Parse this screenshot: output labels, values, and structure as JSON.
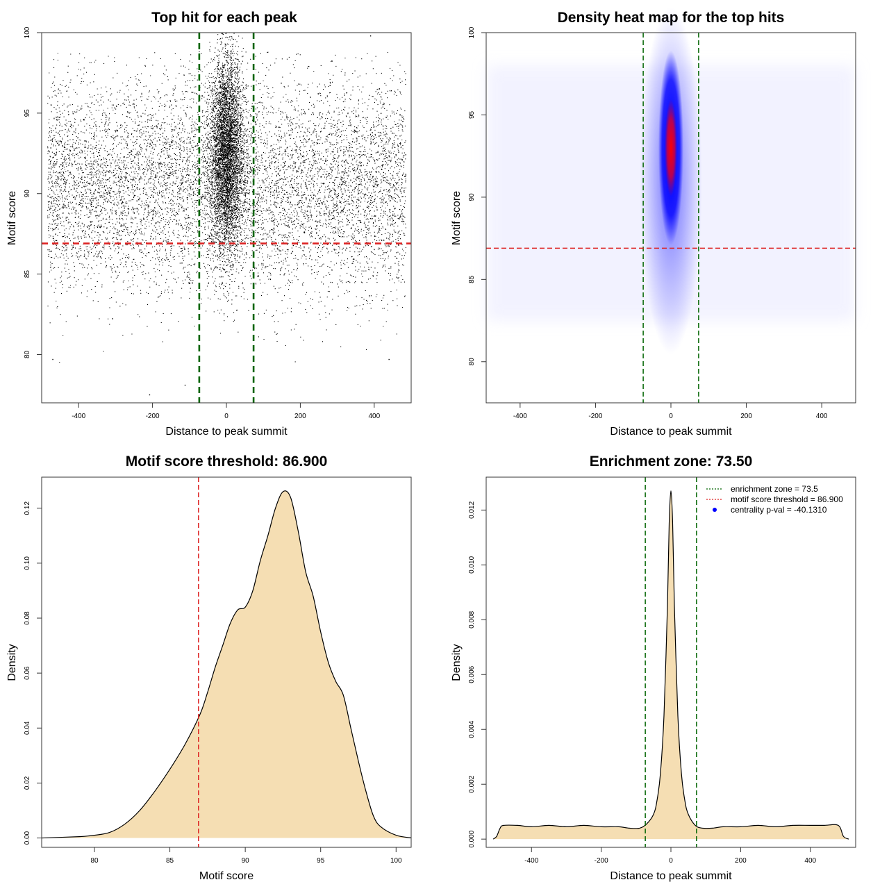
{
  "figure": {
    "panels": [
      {
        "title": "Top hit for each peak",
        "xlabel": "Distance to peak summit",
        "ylabel": "Motif score"
      },
      {
        "title": "Density heat map for the top hits",
        "xlabel": "Distance to peak summit",
        "ylabel": "Motif score"
      },
      {
        "title": "Motif score threshold: 86.900",
        "xlabel": "Motif score",
        "ylabel": "Density"
      },
      {
        "title": "Enrichment zone: 73.50",
        "xlabel": "Distance to peak summit",
        "ylabel": "Density"
      }
    ],
    "legend": {
      "items": [
        {
          "label": "enrichment zone = 73.5",
          "color": "#006400",
          "style": "dotted-line"
        },
        {
          "label": "motif score threshold = 86.900",
          "color": "#dd2222",
          "style": "dotted-line"
        },
        {
          "label": "centrality p-val = -40.1310",
          "color": "#0000ff",
          "style": "point"
        }
      ]
    }
  },
  "chart_data": [
    {
      "type": "scatter",
      "title": "Top hit for each peak",
      "xlabel": "Distance to peak summit",
      "ylabel": "Motif score",
      "xlim": [
        -500,
        500
      ],
      "ylim": [
        77,
        100
      ],
      "x_ticks": [
        "-400",
        "-200",
        "0",
        "200",
        "400"
      ],
      "y_ticks": [
        "80",
        "85",
        "90",
        "95",
        "100"
      ],
      "x_tick_values": [
        -400,
        -200,
        0,
        200,
        400
      ],
      "y_tick_values": [
        80,
        85,
        90,
        95,
        100
      ],
      "enrichment_zone": [
        -73.5,
        73.5
      ],
      "motif_score_threshold": 86.9,
      "point_cloud": {
        "background": {
          "x_range": [
            -485,
            485
          ],
          "y_mean": 90.5,
          "y_sd": 3.3,
          "approx_count": 9000
        },
        "central": {
          "x_mean": 0,
          "x_sd": 22,
          "y_mean": 92.5,
          "y_sd": 3.0,
          "approx_count": 6000
        }
      },
      "outlier_points": [
        {
          "x": -208,
          "y": 77.5
        },
        {
          "x": -112,
          "y": 78.1
        },
        {
          "x": 390,
          "y": 99.8
        },
        {
          "x": -470,
          "y": 79.7
        },
        {
          "x": 440,
          "y": 79.7
        }
      ]
    },
    {
      "type": "heatmap",
      "title": "Density heat map for the top hits",
      "xlabel": "Distance to peak summit",
      "ylabel": "Motif score",
      "xlim": [
        -490,
        490
      ],
      "ylim": [
        77.5,
        100
      ],
      "x_ticks": [
        "-400",
        "-200",
        "0",
        "200",
        "400"
      ],
      "y_ticks": [
        "80",
        "85",
        "90",
        "95",
        "100"
      ],
      "x_tick_values": [
        -400,
        -200,
        0,
        200,
        400
      ],
      "y_tick_values": [
        80,
        85,
        90,
        95,
        100
      ],
      "enrichment_zone": [
        -73.5,
        73.5
      ],
      "motif_score_threshold": 86.9,
      "density_peak": {
        "x": 0,
        "y": 93.0
      },
      "colors": {
        "low": "#ffffff",
        "mid": "#0000ff",
        "high": "#ff0000"
      }
    },
    {
      "type": "area",
      "title": "Motif score threshold: 86.900",
      "xlabel": "Motif score",
      "ylabel": "Density",
      "xlim": [
        76.5,
        101
      ],
      "ylim": [
        0,
        0.13
      ],
      "x_ticks": [
        "80",
        "85",
        "90",
        "95",
        "100"
      ],
      "y_ticks": [
        "0.00",
        "0.02",
        "0.04",
        "0.06",
        "0.08",
        "0.10",
        "0.12"
      ],
      "x_tick_values": [
        80,
        85,
        90,
        95,
        100
      ],
      "y_tick_values": [
        0,
        0.02,
        0.04,
        0.06,
        0.08,
        0.1,
        0.12
      ],
      "threshold": 86.9,
      "fill": "#f5deb3",
      "x": [
        76.5,
        79,
        80,
        81,
        82,
        83,
        84,
        85,
        86,
        87,
        87.5,
        88,
        88.5,
        89,
        89.5,
        90,
        90.5,
        91,
        91.5,
        92,
        92.5,
        93,
        93.5,
        94,
        94.5,
        95,
        95.5,
        96,
        96.5,
        97,
        97.5,
        98,
        98.5,
        99,
        100,
        101
      ],
      "y": [
        0,
        0.0005,
        0.001,
        0.002,
        0.005,
        0.01,
        0.017,
        0.025,
        0.034,
        0.045,
        0.053,
        0.062,
        0.07,
        0.078,
        0.083,
        0.084,
        0.09,
        0.101,
        0.11,
        0.12,
        0.126,
        0.124,
        0.112,
        0.097,
        0.088,
        0.075,
        0.064,
        0.057,
        0.052,
        0.04,
        0.028,
        0.017,
        0.008,
        0.004,
        0.001,
        0
      ]
    },
    {
      "type": "area",
      "title": "Enrichment zone: 73.50",
      "xlabel": "Distance to peak summit",
      "ylabel": "Density",
      "xlim": [
        -530,
        530
      ],
      "ylim": [
        -0.0003,
        0.0132
      ],
      "x_ticks": [
        "-400",
        "-200",
        "0",
        "200",
        "400"
      ],
      "y_ticks": [
        "0.000",
        "0.002",
        "0.004",
        "0.006",
        "0.008",
        "0.010",
        "0.012"
      ],
      "x_tick_values": [
        -400,
        -200,
        0,
        200,
        400
      ],
      "y_tick_values": [
        0,
        0.002,
        0.004,
        0.006,
        0.008,
        0.01,
        0.012
      ],
      "enrichment_zone": [
        -73.5,
        73.5
      ],
      "fill": "#f5deb3",
      "x": [
        -510,
        -500,
        -490,
        -480,
        -440,
        -400,
        -350,
        -300,
        -250,
        -200,
        -150,
        -120,
        -90,
        -70,
        -50,
        -40,
        -30,
        -20,
        -10,
        -5,
        0,
        5,
        10,
        20,
        30,
        40,
        50,
        70,
        90,
        120,
        150,
        200,
        250,
        300,
        350,
        400,
        440,
        480,
        495,
        510
      ],
      "y": [
        0,
        0.0001,
        0.0004,
        0.0005,
        0.0005,
        0.00045,
        0.0005,
        0.00045,
        0.0005,
        0.00045,
        0.00045,
        0.0004,
        0.0004,
        0.00055,
        0.0009,
        0.0014,
        0.0024,
        0.0045,
        0.0085,
        0.0115,
        0.0127,
        0.0115,
        0.0085,
        0.0045,
        0.0024,
        0.0014,
        0.0009,
        0.0005,
        0.0004,
        0.0004,
        0.00045,
        0.00045,
        0.0005,
        0.00045,
        0.0005,
        0.0005,
        0.0005,
        0.0005,
        0.0001,
        0
      ]
    }
  ]
}
